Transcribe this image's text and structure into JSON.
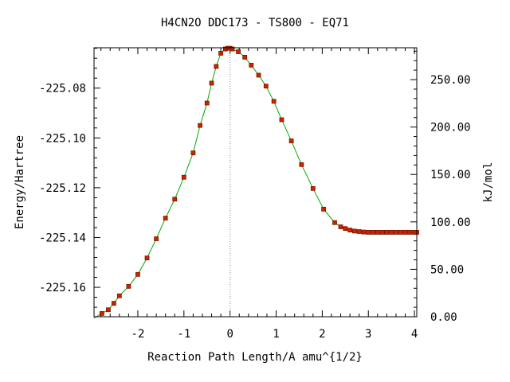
{
  "chart_data": {
    "type": "line",
    "title": "H4CN2O   DDC173 - TS800 - EQ71",
    "xlabel": "Reaction Path Length/A amu^{1/2}",
    "ylabel": "Energy/Hartree",
    "y2label": "kJ/mol",
    "xlim": [
      -2.95,
      4.05
    ],
    "ylim": [
      -225.1718,
      -225.0638
    ],
    "y2lim": [
      0,
      283.6
    ],
    "x_ticks": [
      -2,
      -1,
      0,
      1,
      2,
      3,
      4
    ],
    "x_tick_labels": [
      "-2",
      "-1",
      "0",
      "1",
      "2",
      "3",
      "4"
    ],
    "y_ticks": [
      -225.16,
      -225.14,
      -225.12,
      -225.1,
      -225.08
    ],
    "y_tick_labels": [
      "-225.16",
      "-225.14",
      "-225.12",
      "-225.10",
      "-225.08"
    ],
    "y2_ticks": [
      0,
      50,
      100,
      150,
      200,
      250
    ],
    "y2_tick_labels": [
      "0.00",
      "50.00",
      "100.00",
      "150.00",
      "200.00",
      "250.00"
    ],
    "ts_marker_x": 0,
    "grid": false,
    "colors": {
      "line": "#00aa00",
      "marker": "#cc2200",
      "marker_edge": "#7a1a00",
      "ts_line": "#888888"
    },
    "series": [
      {
        "x": [
          -2.78,
          -2.64,
          -2.52,
          -2.4,
          -2.2,
          -2.0,
          -1.8,
          -1.6,
          -1.4,
          -1.2,
          -1.0,
          -0.8,
          -0.65,
          -0.5,
          -0.4,
          -0.3,
          -0.2,
          -0.1,
          -0.05,
          0.0,
          0.05,
          0.18,
          0.32,
          0.46,
          0.62,
          0.78,
          0.95,
          1.12,
          1.33,
          1.55,
          1.8,
          2.03,
          2.27,
          2.4,
          2.5,
          2.6,
          2.7,
          2.8,
          2.9,
          3.0,
          3.1,
          3.2,
          3.3,
          3.4,
          3.5,
          3.6,
          3.7,
          3.8,
          3.9,
          4.0,
          4.05
        ],
        "y": [
          -225.1705,
          -225.169,
          -225.1664,
          -225.1634,
          -225.1596,
          -225.1548,
          -225.1482,
          -225.1405,
          -225.1322,
          -225.1246,
          -225.1158,
          -225.106,
          -225.095,
          -225.086,
          -225.078,
          -225.0713,
          -225.066,
          -225.0643,
          -225.064,
          -225.064,
          -225.0643,
          -225.0654,
          -225.0676,
          -225.0708,
          -225.0748,
          -225.0792,
          -225.0853,
          -225.0927,
          -225.1012,
          -225.1107,
          -225.1203,
          -225.1286,
          -225.134,
          -225.1357,
          -225.1364,
          -225.137,
          -225.1374,
          -225.1376,
          -225.1378,
          -225.1379,
          -225.1379,
          -225.1379,
          -225.1379,
          -225.1379,
          -225.1379,
          -225.1379,
          -225.1379,
          -225.1379,
          -225.1379,
          -225.1379,
          -225.1379
        ]
      }
    ]
  }
}
